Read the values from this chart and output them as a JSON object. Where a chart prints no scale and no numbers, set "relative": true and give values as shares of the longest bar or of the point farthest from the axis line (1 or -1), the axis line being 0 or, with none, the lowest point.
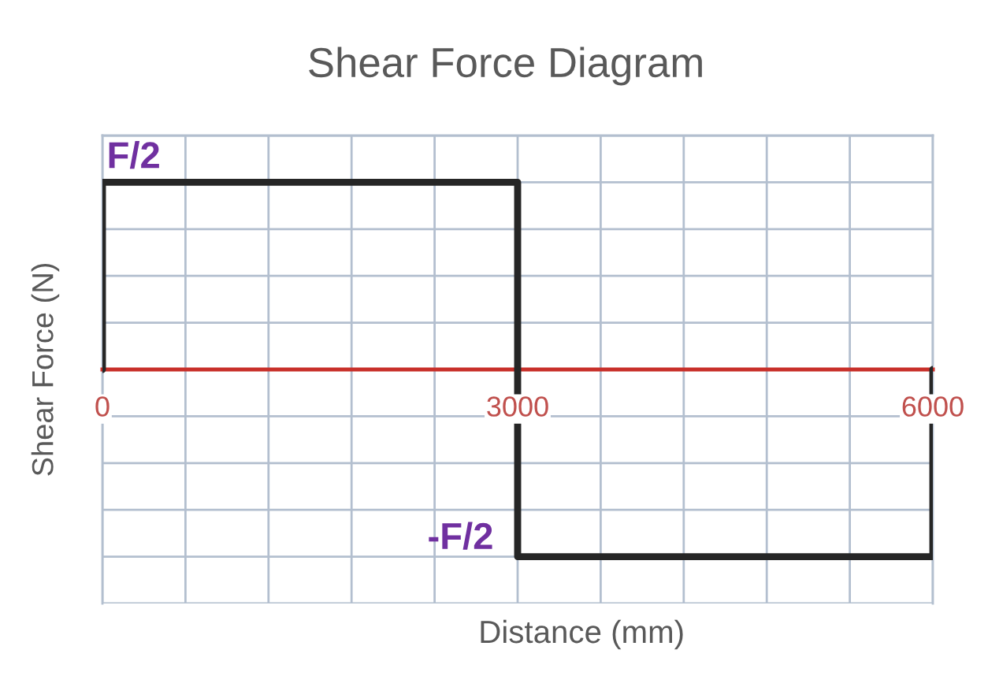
{
  "chart_data": {
    "type": "line",
    "title": "Shear Force Diagram",
    "xlabel": "Distance (mm)",
    "ylabel": "Shear Force (N)",
    "relative": true,
    "x": [
      0,
      0,
      3000,
      3000,
      6000,
      6000
    ],
    "series": [
      {
        "color": "#262626",
        "values": [
          0,
          1,
          1,
          -1,
          -1,
          0
        ]
      }
    ],
    "xlim": [
      0,
      6000
    ],
    "xticks": [
      0,
      {
        "value": 600,
        "label": null
      },
      {
        "value": 1200,
        "label": null
      },
      {
        "value": 1800,
        "label": null
      },
      {
        "value": 2400,
        "label": null
      },
      3000,
      {
        "value": 3600,
        "label": null
      },
      {
        "value": 4200,
        "label": null
      },
      {
        "value": 4800,
        "label": null
      },
      {
        "value": 5400,
        "label": null
      },
      6000
    ],
    "annotations": [
      {
        "text": "F/2",
        "x": 0,
        "y": 1
      },
      {
        "text": "-F/2",
        "x": 3000,
        "y": -1
      }
    ],
    "grid": true,
    "line_style": "solid"
  }
}
